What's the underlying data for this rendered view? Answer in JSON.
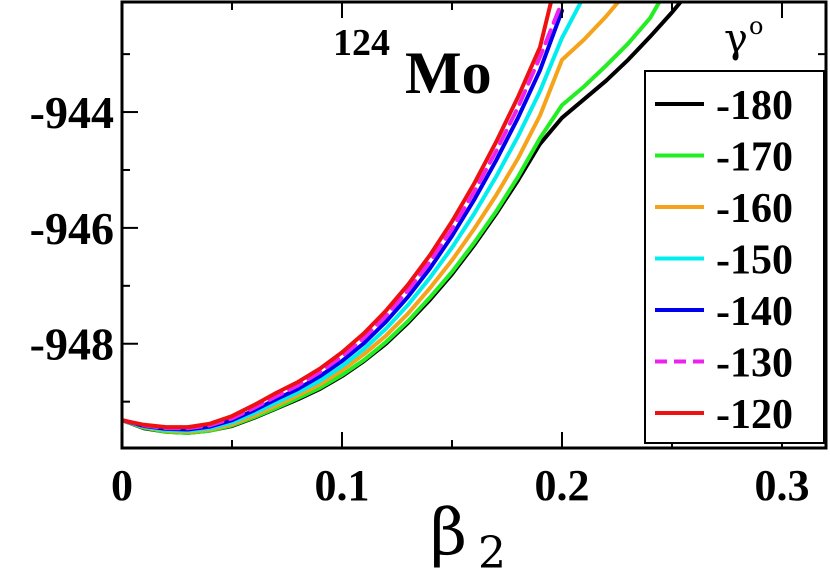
{
  "chart_data": {
    "type": "line",
    "title": "Mo",
    "title_superscript": "124",
    "xlabel": "β",
    "xlabel_subscript": "2",
    "legend_title": "γ",
    "legend_title_superscript": "o",
    "xlim": [
      0,
      0.32
    ],
    "ylim": [
      -949.8,
      -942.1
    ],
    "x_ticks": [
      0,
      0.1,
      0.2,
      0.3
    ],
    "x_tick_labels": [
      "0",
      "0.1",
      "0.2",
      "0.3"
    ],
    "y_ticks": [
      -944,
      -946,
      -948
    ],
    "y_tick_labels": [
      "-944",
      "-946",
      "-948"
    ],
    "grid": false,
    "legend_position": "right",
    "series": [
      {
        "name": "-180",
        "color": "#000000",
        "dash": false,
        "x": [
          0,
          0.01,
          0.02,
          0.03,
          0.04,
          0.05,
          0.06,
          0.07,
          0.08,
          0.09,
          0.1,
          0.11,
          0.12,
          0.13,
          0.14,
          0.15,
          0.16,
          0.17,
          0.18,
          0.19,
          0.2,
          0.21,
          0.22,
          0.23,
          0.24,
          0.25,
          0.255
        ],
        "y": [
          -949.32,
          -949.46,
          -949.52,
          -949.54,
          -949.5,
          -949.42,
          -949.28,
          -949.12,
          -948.96,
          -948.78,
          -948.56,
          -948.3,
          -948.0,
          -947.64,
          -947.24,
          -946.8,
          -946.3,
          -945.76,
          -945.18,
          -944.55,
          -944.1,
          -943.78,
          -943.46,
          -943.1,
          -942.7,
          -942.28,
          -942.05
        ]
      },
      {
        "name": "-170",
        "color": "#22ee22",
        "dash": false,
        "x": [
          0,
          0.01,
          0.02,
          0.03,
          0.04,
          0.05,
          0.06,
          0.07,
          0.08,
          0.09,
          0.1,
          0.11,
          0.12,
          0.13,
          0.14,
          0.15,
          0.16,
          0.17,
          0.18,
          0.19,
          0.2,
          0.21,
          0.22,
          0.23,
          0.24,
          0.245
        ],
        "y": [
          -949.32,
          -949.45,
          -949.52,
          -949.54,
          -949.5,
          -949.41,
          -949.27,
          -949.11,
          -948.94,
          -948.76,
          -948.54,
          -948.28,
          -947.97,
          -947.61,
          -947.2,
          -946.76,
          -946.26,
          -945.72,
          -945.12,
          -944.45,
          -943.88,
          -943.56,
          -943.2,
          -942.82,
          -942.38,
          -942.05
        ]
      },
      {
        "name": "-160",
        "color": "#f5a31a",
        "dash": false,
        "x": [
          0,
          0.01,
          0.02,
          0.03,
          0.04,
          0.05,
          0.06,
          0.07,
          0.08,
          0.09,
          0.1,
          0.11,
          0.12,
          0.13,
          0.14,
          0.15,
          0.16,
          0.17,
          0.18,
          0.19,
          0.2,
          0.21,
          0.22,
          0.23
        ],
        "y": [
          -949.32,
          -949.44,
          -949.5,
          -949.52,
          -949.48,
          -949.39,
          -949.24,
          -949.07,
          -948.89,
          -948.7,
          -948.46,
          -948.18,
          -947.86,
          -947.48,
          -947.04,
          -946.56,
          -946.02,
          -945.44,
          -944.8,
          -944.06,
          -943.1,
          -942.75,
          -942.35,
          -941.9
        ]
      },
      {
        "name": "-150",
        "color": "#00eeee",
        "dash": false,
        "x": [
          0,
          0.01,
          0.02,
          0.03,
          0.04,
          0.05,
          0.06,
          0.07,
          0.08,
          0.09,
          0.1,
          0.11,
          0.12,
          0.13,
          0.14,
          0.15,
          0.16,
          0.17,
          0.18,
          0.19,
          0.2,
          0.21
        ],
        "y": [
          -949.32,
          -949.43,
          -949.49,
          -949.5,
          -949.46,
          -949.36,
          -949.2,
          -949.02,
          -948.84,
          -948.64,
          -948.39,
          -948.09,
          -947.74,
          -947.33,
          -946.86,
          -946.34,
          -945.76,
          -945.12,
          -944.42,
          -943.64,
          -942.72,
          -942.0
        ]
      },
      {
        "name": "-140",
        "color": "#0000ee",
        "dash": false,
        "x": [
          0,
          0.01,
          0.02,
          0.03,
          0.04,
          0.05,
          0.06,
          0.07,
          0.08,
          0.09,
          0.1,
          0.11,
          0.12,
          0.13,
          0.14,
          0.15,
          0.16,
          0.17,
          0.18,
          0.19,
          0.2
        ],
        "y": [
          -949.32,
          -949.42,
          -949.47,
          -949.48,
          -949.43,
          -949.32,
          -949.15,
          -948.96,
          -948.78,
          -948.56,
          -948.3,
          -947.99,
          -947.62,
          -947.19,
          -946.7,
          -946.14,
          -945.52,
          -944.84,
          -944.1,
          -943.28,
          -942.25
        ]
      },
      {
        "name": "-130",
        "color": "#ee22ee",
        "dash": true,
        "x": [
          0,
          0.01,
          0.02,
          0.03,
          0.04,
          0.05,
          0.06,
          0.07,
          0.08,
          0.09,
          0.1,
          0.11,
          0.12,
          0.13,
          0.14,
          0.15,
          0.16,
          0.17,
          0.18,
          0.19,
          0.2
        ],
        "y": [
          -949.32,
          -949.41,
          -949.46,
          -949.46,
          -949.41,
          -949.29,
          -949.11,
          -948.91,
          -948.72,
          -948.49,
          -948.22,
          -947.9,
          -947.52,
          -947.08,
          -946.58,
          -946.02,
          -945.38,
          -944.68,
          -943.92,
          -943.05,
          -942.1
        ]
      },
      {
        "name": "-120",
        "color": "#ee1111",
        "dash": false,
        "x": [
          0,
          0.01,
          0.02,
          0.03,
          0.04,
          0.05,
          0.06,
          0.07,
          0.08,
          0.09,
          0.1,
          0.11,
          0.12,
          0.13,
          0.14,
          0.15,
          0.16,
          0.17,
          0.18,
          0.19,
          0.195
        ],
        "y": [
          -949.32,
          -949.4,
          -949.44,
          -949.44,
          -949.38,
          -949.25,
          -949.06,
          -948.85,
          -948.66,
          -948.43,
          -948.15,
          -947.82,
          -947.43,
          -946.98,
          -946.47,
          -945.89,
          -945.24,
          -944.52,
          -943.74,
          -942.88,
          -942.1
        ]
      }
    ]
  }
}
